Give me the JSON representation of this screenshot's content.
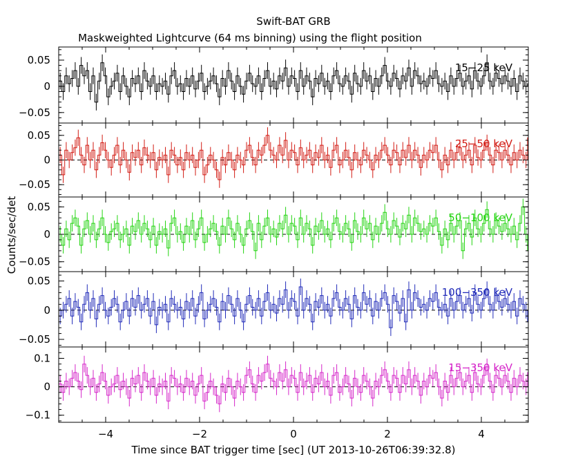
{
  "chart_data": {
    "type": "line",
    "title": "Swift-BAT GRB",
    "subtitle": "Maskweighted Lightcurve (64 ms binning) using the flight position",
    "xlabel": "Time since BAT trigger time [sec] (UT 2013-10-26T06:39:32.8)",
    "ylabel": "Counts/sec/det",
    "xlim": [
      -5,
      5
    ],
    "x_ticks": [
      -4,
      -2,
      0,
      2,
      4
    ],
    "x_tick_labels": [
      "−4",
      "−2",
      "0",
      "2",
      "4"
    ],
    "bin_width_sec": 0.064,
    "panels": [
      {
        "band": "15-25 keV",
        "label": "15−25 keV",
        "color": "#000000",
        "ylim": [
          -0.07,
          0.075
        ],
        "zero_line": false,
        "y_ticks": [
          -0.05,
          0,
          0.05
        ],
        "y_tick_labels": [
          "−0.05",
          "0",
          "0.05"
        ],
        "values": [
          0.01,
          -0.01,
          0.02,
          0.005,
          0.015,
          0.03,
          0.0,
          0.04,
          0.02,
          0.03,
          -0.01,
          0.02,
          -0.03,
          0.01,
          0.045,
          0.02,
          -0.02,
          0.0,
          0.01,
          0.025,
          -0.01,
          0.02,
          0.0,
          -0.02,
          0.015,
          0.005,
          0.02,
          -0.01,
          0.03,
          0.01,
          0.0,
          0.02,
          -0.01,
          0.005,
          0.0,
          0.01,
          -0.015,
          0.02,
          0.03,
          0.0,
          0.005,
          -0.01,
          0.015,
          0.0,
          0.02,
          -0.005,
          0.01,
          0.025,
          -0.01,
          0.0,
          0.01,
          0.02,
          0.005,
          -0.02,
          0.015,
          0.0,
          0.03,
          0.01,
          -0.01,
          0.02,
          0.0,
          -0.015,
          0.01,
          0.025,
          0.005,
          0.0,
          0.02,
          -0.01,
          0.015,
          0.03,
          0.0,
          0.01,
          -0.005,
          0.02,
          0.01,
          0.035,
          0.0,
          0.02,
          0.015,
          -0.01,
          0.03,
          0.0,
          0.02,
          0.01,
          -0.02,
          0.015,
          0.005,
          0.025,
          0.0,
          0.01,
          -0.01,
          0.02,
          0.03,
          0.005,
          0.0,
          0.02,
          0.01,
          -0.015,
          0.025,
          0.005,
          0.0,
          0.03,
          0.01,
          0.02,
          -0.01,
          0.015,
          0.0,
          0.02,
          0.04,
          0.01,
          0.0,
          0.025,
          0.015,
          -0.005,
          0.02,
          0.01,
          0.035,
          0.0,
          0.03,
          0.02,
          0.005,
          0.01,
          0.0,
          0.02,
          0.015,
          0.03,
          0.005,
          0.0,
          0.01,
          -0.01,
          0.02,
          0.0,
          0.015,
          0.025,
          0.0,
          0.01,
          0.02,
          -0.005,
          0.03,
          0.01,
          0.0,
          0.02,
          0.045,
          0.01,
          0.0,
          0.025,
          0.015,
          0.005,
          0.02,
          0.01,
          0.0,
          0.015,
          -0.01,
          0.02,
          0.01,
          0.0,
          0.005
        ]
      },
      {
        "band": "25-50 keV",
        "label": "25−50 keV",
        "color": "#d21a12",
        "ylim": [
          -0.075,
          0.075
        ],
        "zero_line": true,
        "y_ticks": [
          -0.05,
          0,
          0.05
        ],
        "y_tick_labels": [
          "−0.05",
          "0",
          "0.05"
        ],
        "values": [
          0.01,
          -0.03,
          0.02,
          0.0,
          0.015,
          0.025,
          0.045,
          0.01,
          -0.01,
          0.03,
          0.0,
          0.02,
          -0.02,
          0.01,
          0.035,
          0.02,
          0.0,
          -0.015,
          0.01,
          0.03,
          -0.01,
          0.02,
          0.0,
          -0.025,
          0.015,
          0.005,
          0.02,
          -0.01,
          0.025,
          0.01,
          0.0,
          0.015,
          -0.02,
          0.005,
          0.0,
          0.01,
          -0.03,
          0.02,
          0.01,
          -0.01,
          0.005,
          -0.02,
          0.015,
          0.0,
          0.01,
          -0.015,
          0.0,
          0.02,
          -0.03,
          -0.01,
          0.01,
          0.0,
          -0.02,
          -0.04,
          0.005,
          -0.01,
          0.015,
          0.0,
          -0.02,
          0.01,
          0.0,
          -0.01,
          0.02,
          0.03,
          0.005,
          -0.01,
          0.02,
          0.01,
          0.03,
          0.05,
          0.02,
          0.01,
          0.0,
          0.03,
          0.01,
          0.04,
          0.0,
          0.02,
          0.015,
          -0.01,
          0.025,
          0.0,
          0.01,
          0.02,
          -0.01,
          0.015,
          0.005,
          0.03,
          0.0,
          0.01,
          -0.015,
          0.02,
          0.03,
          -0.01,
          0.0,
          0.02,
          0.005,
          -0.02,
          0.015,
          0.0,
          -0.01,
          0.02,
          0.01,
          0.0,
          -0.02,
          0.01,
          0.0,
          0.02,
          0.03,
          0.01,
          -0.01,
          0.02,
          0.015,
          -0.01,
          0.02,
          0.005,
          0.03,
          0.0,
          0.02,
          0.01,
          -0.015,
          0.01,
          0.0,
          0.02,
          0.015,
          0.03,
          0.0,
          -0.02,
          0.01,
          -0.01,
          0.02,
          0.0,
          0.015,
          0.025,
          0.0,
          0.01,
          0.02,
          -0.01,
          0.03,
          0.005,
          0.0,
          0.02,
          0.035,
          0.01,
          -0.01,
          0.02,
          0.015,
          0.0,
          0.02,
          0.01,
          -0.01,
          0.015,
          0.0,
          0.02,
          0.01,
          0.0,
          0.045
        ]
      },
      {
        "band": "50-100 keV",
        "label": "50−100 keV",
        "color": "#22d40f",
        "ylim": [
          -0.068,
          0.068
        ],
        "zero_line": true,
        "y_ticks": [
          -0.05,
          0,
          0.05
        ],
        "y_tick_labels": [
          "−0.05",
          "0",
          "0.05"
        ],
        "values": [
          0.0,
          -0.02,
          0.01,
          -0.01,
          0.02,
          0.03,
          0.015,
          -0.02,
          0.01,
          0.025,
          0.0,
          0.02,
          -0.01,
          0.01,
          0.03,
          0.0,
          -0.015,
          0.005,
          0.01,
          0.02,
          -0.01,
          0.0,
          0.01,
          -0.02,
          0.015,
          0.005,
          0.025,
          0.0,
          0.02,
          0.01,
          -0.01,
          0.015,
          -0.02,
          0.005,
          0.0,
          0.01,
          -0.025,
          0.02,
          0.03,
          0.0,
          0.005,
          -0.015,
          0.015,
          0.0,
          0.025,
          -0.01,
          0.01,
          0.03,
          -0.015,
          0.0,
          0.01,
          0.02,
          0.005,
          -0.02,
          0.015,
          0.0,
          0.03,
          0.01,
          -0.01,
          0.02,
          0.0,
          -0.02,
          0.01,
          0.025,
          0.005,
          -0.03,
          0.02,
          -0.01,
          0.015,
          0.03,
          0.0,
          0.01,
          -0.005,
          0.02,
          0.01,
          0.035,
          0.0,
          0.02,
          0.015,
          -0.01,
          0.03,
          0.0,
          0.02,
          0.01,
          -0.02,
          0.015,
          0.005,
          0.025,
          0.0,
          0.01,
          -0.01,
          0.02,
          0.03,
          0.005,
          0.0,
          0.02,
          0.01,
          -0.015,
          0.025,
          0.005,
          0.0,
          0.03,
          0.01,
          0.02,
          -0.01,
          0.015,
          0.0,
          0.02,
          0.04,
          0.01,
          0.0,
          0.025,
          0.015,
          -0.005,
          0.02,
          0.01,
          0.035,
          0.0,
          0.03,
          0.02,
          0.005,
          0.01,
          0.0,
          0.02,
          0.015,
          0.03,
          0.005,
          -0.02,
          0.01,
          -0.01,
          0.02,
          0.0,
          0.015,
          0.025,
          -0.03,
          0.01,
          0.02,
          -0.005,
          0.03,
          0.01,
          0.0,
          0.02,
          0.045,
          0.01,
          0.0,
          0.025,
          0.015,
          0.005,
          0.02,
          0.01,
          0.0,
          0.015,
          -0.01,
          0.02,
          0.05,
          0.0,
          -0.03
        ]
      },
      {
        "band": "100-350 keV",
        "label": "100−350 keV",
        "color": "#1f29b8",
        "ylim": [
          -0.063,
          0.066
        ],
        "zero_line": true,
        "y_ticks": [
          -0.05,
          0,
          0.05
        ],
        "y_tick_labels": [
          "−0.05",
          "0",
          "0.05"
        ],
        "values": [
          -0.01,
          0.0,
          0.01,
          0.02,
          -0.01,
          0.015,
          0.005,
          -0.02,
          0.01,
          0.03,
          0.0,
          0.02,
          -0.015,
          0.01,
          0.025,
          0.0,
          -0.01,
          0.005,
          0.02,
          0.01,
          -0.02,
          0.0,
          0.015,
          -0.01,
          0.02,
          0.005,
          0.025,
          0.0,
          0.01,
          0.02,
          -0.01,
          0.015,
          -0.025,
          0.005,
          0.0,
          0.01,
          -0.02,
          0.02,
          0.01,
          0.0,
          0.005,
          -0.015,
          0.015,
          0.0,
          0.02,
          -0.01,
          0.01,
          0.03,
          -0.015,
          0.0,
          0.01,
          0.02,
          0.005,
          -0.02,
          0.015,
          0.0,
          0.025,
          0.01,
          -0.01,
          0.02,
          0.0,
          -0.02,
          0.01,
          0.025,
          0.005,
          0.0,
          0.02,
          -0.01,
          0.015,
          0.03,
          0.0,
          0.01,
          -0.005,
          0.02,
          0.01,
          0.035,
          0.0,
          0.02,
          0.015,
          -0.01,
          0.04,
          0.0,
          0.02,
          0.01,
          -0.02,
          0.015,
          0.005,
          0.025,
          0.0,
          0.01,
          -0.01,
          0.02,
          0.03,
          0.005,
          0.0,
          0.02,
          0.01,
          -0.015,
          0.025,
          0.005,
          0.0,
          0.03,
          0.01,
          0.02,
          -0.01,
          0.015,
          0.0,
          0.02,
          0.03,
          0.01,
          -0.03,
          0.025,
          0.015,
          -0.005,
          0.02,
          -0.02,
          0.035,
          0.0,
          0.03,
          0.02,
          0.005,
          0.01,
          0.0,
          0.02,
          0.015,
          0.03,
          0.005,
          0.0,
          0.01,
          -0.01,
          0.02,
          0.0,
          0.015,
          0.025,
          0.0,
          0.01,
          0.02,
          -0.005,
          0.03,
          0.01,
          0.0,
          0.02,
          0.035,
          0.01,
          0.0,
          0.025,
          0.015,
          0.005,
          0.02,
          0.01,
          0.0,
          0.015,
          -0.01,
          0.02,
          0.01,
          0.0,
          -0.02
        ]
      },
      {
        "band": "15-350 keV",
        "label": "15−350 keV",
        "color": "#d525c9",
        "ylim": [
          -0.125,
          0.14
        ],
        "zero_line": true,
        "y_ticks": [
          -0.1,
          0,
          0.1
        ],
        "y_tick_labels": [
          "−0.1",
          "0",
          "0.1"
        ],
        "values": [
          0.01,
          -0.02,
          0.02,
          0.0,
          0.03,
          0.05,
          0.02,
          -0.01,
          0.08,
          0.04,
          0.0,
          0.03,
          -0.02,
          0.01,
          0.05,
          0.02,
          -0.03,
          0.0,
          0.01,
          0.04,
          -0.01,
          0.02,
          0.0,
          -0.04,
          0.03,
          0.01,
          0.04,
          -0.02,
          0.05,
          0.02,
          0.0,
          0.03,
          -0.03,
          0.01,
          0.0,
          0.02,
          -0.05,
          0.04,
          0.03,
          0.0,
          0.01,
          -0.02,
          0.03,
          0.0,
          0.02,
          -0.03,
          0.01,
          0.04,
          -0.05,
          -0.02,
          0.02,
          0.0,
          -0.03,
          -0.06,
          0.01,
          -0.02,
          0.03,
          0.0,
          -0.04,
          0.02,
          0.0,
          -0.02,
          0.04,
          0.06,
          0.01,
          -0.02,
          0.04,
          0.02,
          0.05,
          0.08,
          0.03,
          0.02,
          0.0,
          0.05,
          0.02,
          0.06,
          0.0,
          0.04,
          0.03,
          -0.02,
          0.05,
          0.0,
          0.02,
          0.04,
          -0.02,
          0.03,
          0.01,
          0.05,
          0.0,
          0.02,
          -0.03,
          0.04,
          0.05,
          -0.02,
          0.0,
          0.04,
          0.01,
          -0.04,
          0.03,
          0.0,
          -0.02,
          0.04,
          0.02,
          0.0,
          -0.04,
          0.02,
          0.0,
          0.04,
          0.06,
          0.02,
          -0.02,
          0.04,
          0.03,
          -0.02,
          0.04,
          0.01,
          0.06,
          0.0,
          0.04,
          0.02,
          -0.03,
          0.02,
          0.0,
          0.04,
          0.03,
          0.05,
          0.0,
          -0.04,
          0.02,
          -0.02,
          0.04,
          0.0,
          0.03,
          0.05,
          0.0,
          0.02,
          0.04,
          -0.02,
          0.05,
          0.01,
          0.0,
          0.04,
          0.07,
          0.02,
          -0.02,
          0.04,
          0.03,
          0.0,
          0.04,
          0.02,
          -0.02,
          0.03,
          0.0,
          0.04,
          0.02,
          0.0,
          0.05
        ]
      }
    ]
  }
}
